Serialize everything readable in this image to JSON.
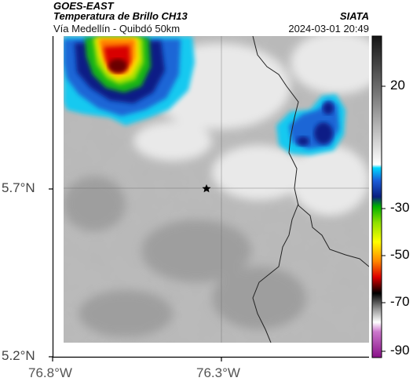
{
  "header": {
    "satellite": "GOES-EAST",
    "product": "Temperatura de Brillo CH13",
    "region": "Vía Medellín - Quibdó 50km",
    "agency": "SIATA",
    "datetime": "2024-03-01 20:49"
  },
  "axes": {
    "lat_ticks": [
      "5.7°N",
      "5.2°N"
    ],
    "lon_ticks": [
      "76.8°W",
      "76.3°W"
    ]
  },
  "colorbar": {
    "ticks": [
      "20",
      "-30",
      "-50",
      "-70",
      "-90"
    ]
  },
  "marker": {
    "name": "star-marker"
  }
}
